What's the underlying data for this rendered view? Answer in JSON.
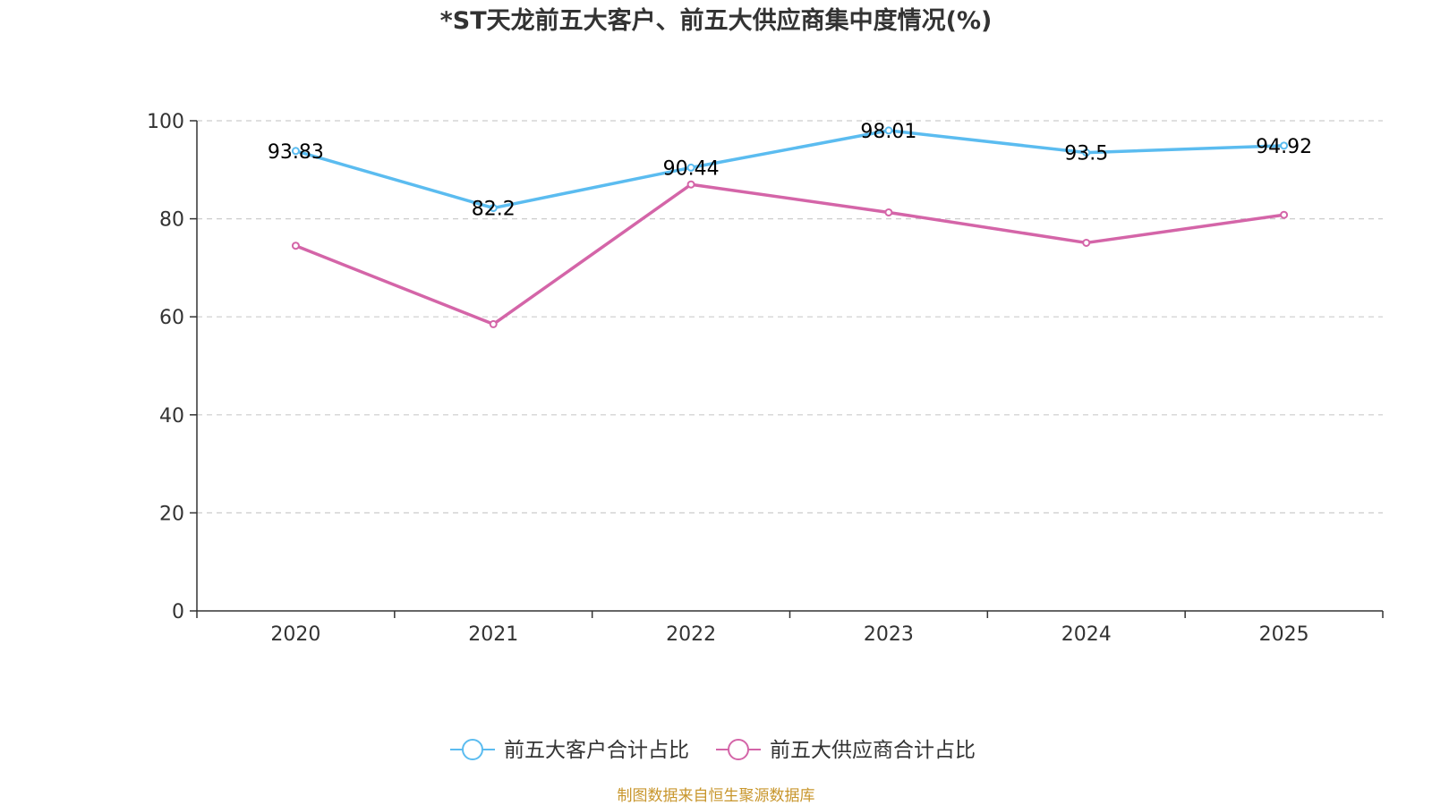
{
  "chart_data": {
    "type": "line",
    "title": "*ST天龙前五大客户、前五大供应商集中度情况(%)",
    "categories": [
      "2020",
      "2021",
      "2022",
      "2023",
      "2024",
      "2025"
    ],
    "ylim": [
      0,
      100
    ],
    "yticks": [
      0,
      20,
      40,
      60,
      80,
      100
    ],
    "grid": true,
    "legend_position": "bottom",
    "series": [
      {
        "name": "前五大客户合计占比",
        "color": "#5bbcf0",
        "values": [
          93.83,
          82.2,
          90.44,
          98.01,
          93.5,
          94.92
        ],
        "labels": [
          "93.83",
          "82.2",
          "90.44",
          "98.01",
          "93.5",
          "94.92"
        ]
      },
      {
        "name": "前五大供应商合计占比",
        "color": "#d465a8",
        "values": [
          74.5,
          58.5,
          87.0,
          81.3,
          75.1,
          80.8
        ],
        "labels": []
      }
    ],
    "source": "制图数据来自恒生聚源数据库"
  }
}
